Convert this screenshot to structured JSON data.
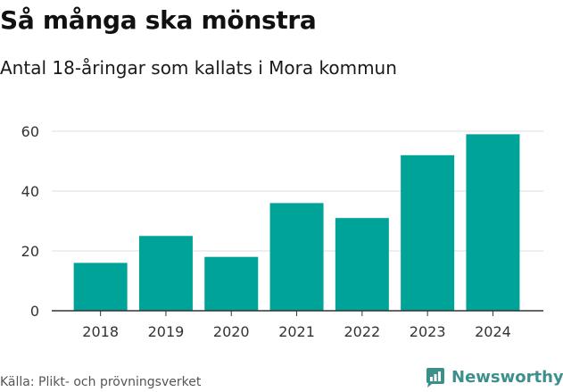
{
  "header": {
    "title": "Så många ska mönstra",
    "subtitle": "Antal 18-åringar som kallats i Mora kommun"
  },
  "footer": {
    "source": "Källa: Plikt- och prövningsverket",
    "brand": "Newsworthy"
  },
  "colors": {
    "bar": "#00a398",
    "grid": "#dddddd",
    "axis": "#333333",
    "brand": "#3d8f8c"
  },
  "chart_data": {
    "type": "bar",
    "title": "Så många ska mönstra",
    "subtitle": "Antal 18-åringar som kallats i Mora kommun",
    "xlabel": "",
    "ylabel": "",
    "categories": [
      "2018",
      "2019",
      "2020",
      "2021",
      "2022",
      "2023",
      "2024"
    ],
    "values": [
      16,
      25,
      18,
      36,
      31,
      52,
      59
    ],
    "ylim": [
      0,
      60
    ],
    "yticks": [
      0,
      20,
      40,
      60
    ],
    "grid": true,
    "legend": "none"
  }
}
